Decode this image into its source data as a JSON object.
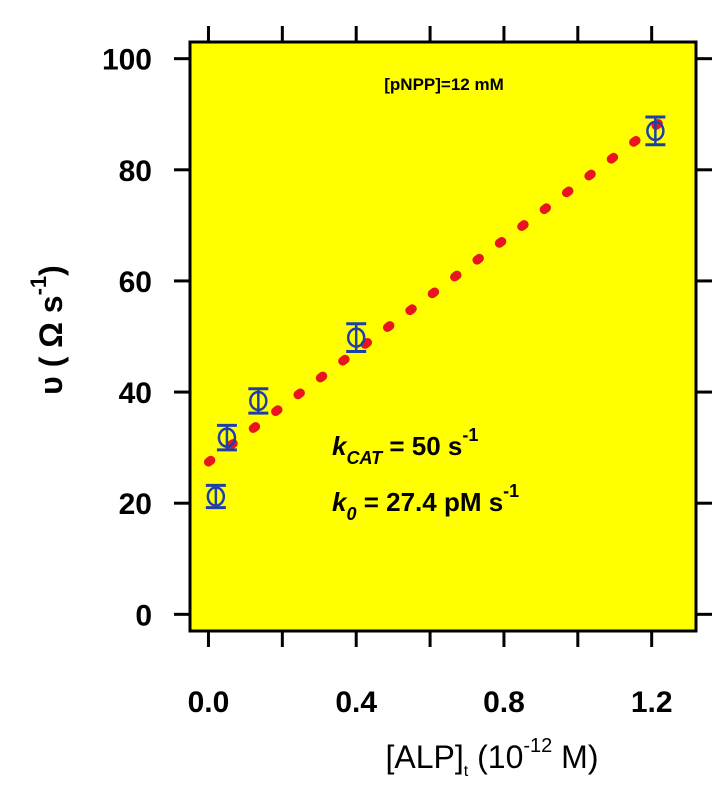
{
  "chart_data": {
    "type": "scatter",
    "xlabel": {
      "main": "[ALP]",
      "sub": "t",
      "pre": " (10",
      "sup": "-12",
      "post": " M)"
    },
    "ylabel": {
      "main": "υ ( Ω s",
      "sup": "-1",
      "post": ")"
    },
    "xlim": [
      -0.05,
      1.32
    ],
    "ylim": [
      -3,
      103
    ],
    "x_ticks": [
      {
        "value": 0.0,
        "label": "0.0"
      },
      {
        "value": 0.4,
        "label": "0.4"
      },
      {
        "value": 0.8,
        "label": "0.8"
      },
      {
        "value": 1.2,
        "label": "1.2"
      }
    ],
    "x_minor_ticks": [
      0.2,
      0.6,
      1.0
    ],
    "y_ticks": [
      {
        "value": 0,
        "label": "0"
      },
      {
        "value": 20,
        "label": "20"
      },
      {
        "value": 40,
        "label": "40"
      },
      {
        "value": 60,
        "label": "60"
      },
      {
        "value": 80,
        "label": "80"
      },
      {
        "value": 100,
        "label": "100"
      }
    ],
    "series": [
      {
        "points": [
          {
            "x": 0.02,
            "y": 21.2,
            "err": 2.0
          },
          {
            "x": 0.05,
            "y": 31.8,
            "err": 2.2
          },
          {
            "x": 0.135,
            "y": 38.4,
            "err": 2.2
          },
          {
            "x": 0.4,
            "y": 49.8,
            "err": 2.5
          },
          {
            "x": 1.21,
            "y": 87.0,
            "err": 2.5
          }
        ],
        "color": "#1f3fa8"
      }
    ],
    "fit": {
      "intercept": 27.4,
      "slope": 50,
      "x_range": [
        0.0,
        1.25
      ],
      "color": "#e8141e",
      "style": "dotted"
    },
    "background_color": "#ffff00",
    "annotations": {
      "condition": "[pNPP]=12 mM",
      "kcat": {
        "k": "k",
        "sub": "CAT",
        "text": " = 50 s",
        "sup": "-1"
      },
      "k0": {
        "k": "k",
        "sub": "0",
        "text": " = 27.4 pM s",
        "sup": "-1"
      }
    }
  }
}
